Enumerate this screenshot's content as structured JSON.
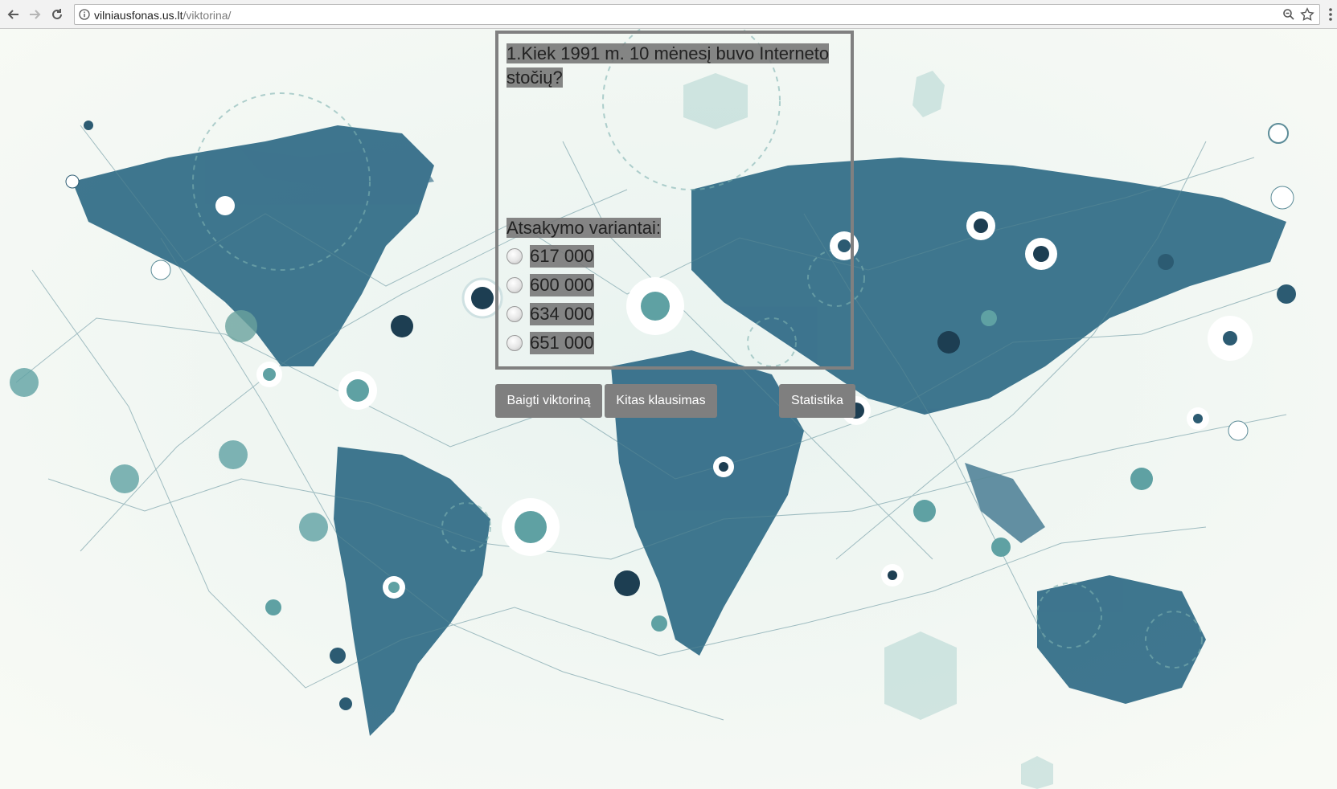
{
  "browser": {
    "url_host": "vilniausfonas.us.lt",
    "url_path": "/viktorina/"
  },
  "quiz": {
    "question": "1.Kiek 1991 m. 10 mėnesį buvo Interneto stočių?",
    "answers_label": "Atsakymo variantai:",
    "options": [
      "617 000",
      "600 000",
      "634 000",
      "651 000"
    ]
  },
  "buttons": {
    "finish": "Baigti viktoriną",
    "next": "Kitas klausimas",
    "stats": "Statistika"
  },
  "colors": {
    "button_bg": "#7f7f7f",
    "box_border": "#808080",
    "map_land": "#2f6a86",
    "map_accent": "#5fa1a3"
  }
}
